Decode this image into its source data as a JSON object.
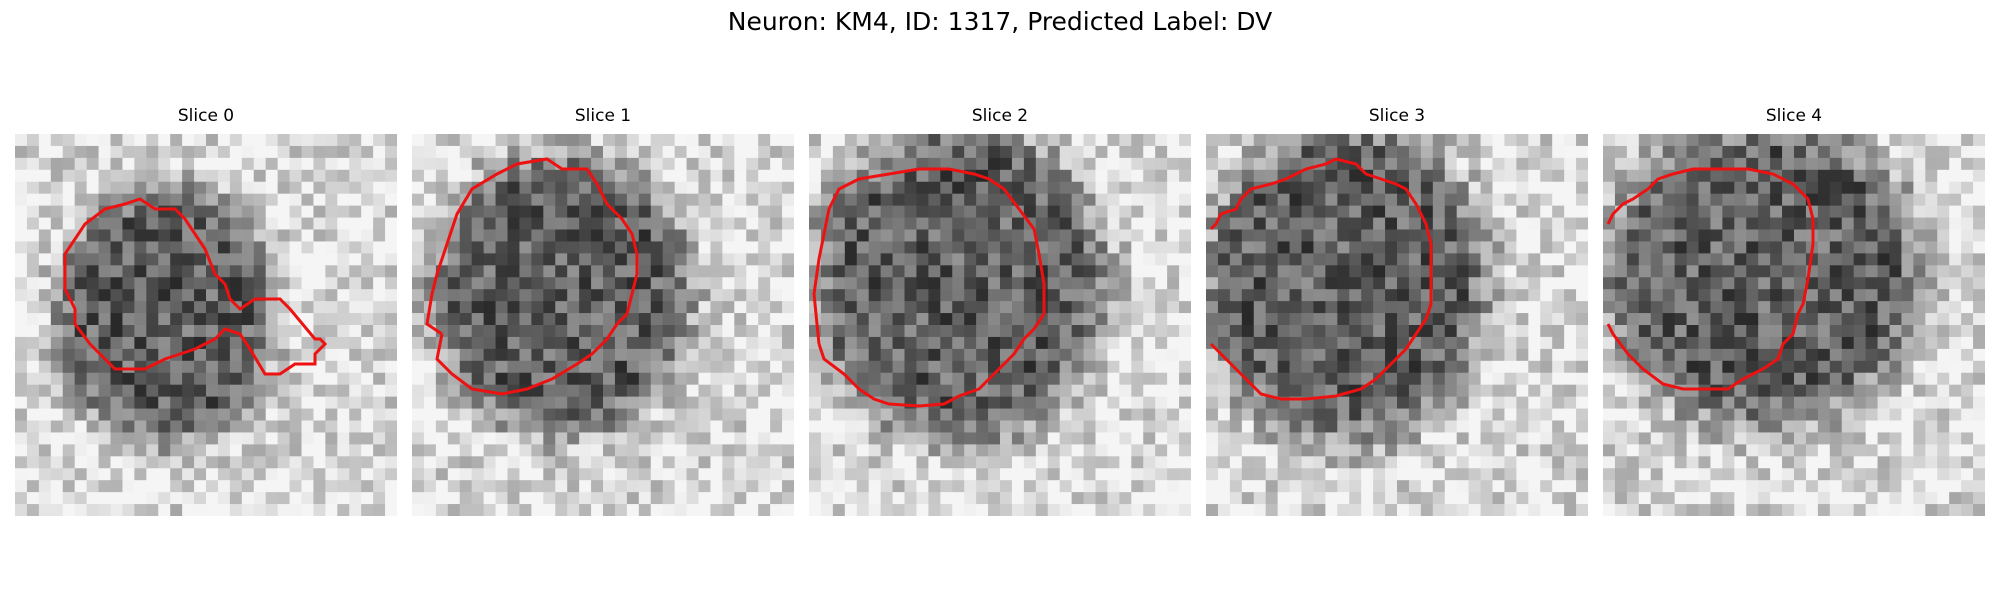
{
  "figure": {
    "title": "Neuron: KM4, ID: 1317, Predicted Label: DV"
  },
  "panels": [
    {
      "title": "Slice 0"
    },
    {
      "title": "Slice 1"
    },
    {
      "title": "Slice 2"
    },
    {
      "title": "Slice 3"
    },
    {
      "title": "Slice 4"
    }
  ],
  "image": {
    "colormap": "grayscale",
    "contour_color": "#ee1111"
  }
}
